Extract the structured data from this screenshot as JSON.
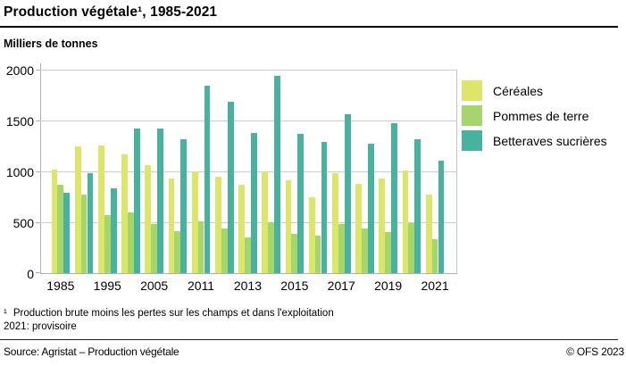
{
  "chart_data": {
    "type": "bar",
    "title": "Production végétale¹, 1985-2021",
    "unit_label": "Milliers de tonnes",
    "categories": [
      "1985",
      "1990",
      "1995",
      "2000",
      "2005",
      "2010",
      "2011",
      "2012",
      "2013",
      "2014",
      "2015",
      "2016",
      "2017",
      "2018",
      "2019",
      "2020",
      "2021"
    ],
    "x_labeled_every": 2,
    "series": [
      {
        "name": "Céréales",
        "color": "#dde767",
        "values": [
          1020,
          1250,
          1255,
          1170,
          1060,
          930,
          1000,
          950,
          865,
          1000,
          915,
          745,
          980,
          880,
          930,
          1010,
          775
        ]
      },
      {
        "name": "Pommes de terre",
        "color": "#a4d66b",
        "values": [
          870,
          770,
          570,
          600,
          485,
          410,
          510,
          440,
          350,
          500,
          390,
          370,
          480,
          440,
          405,
          490,
          335
        ]
      },
      {
        "name": "Betteraves sucrières",
        "color": "#47b29e",
        "values": [
          790,
          980,
          830,
          1420,
          1420,
          1320,
          1845,
          1685,
          1380,
          1935,
          1370,
          1290,
          1560,
          1270,
          1470,
          1320,
          1105
        ]
      }
    ],
    "ylim": [
      0,
      2000
    ],
    "yticks": [
      0,
      500,
      1000,
      1500,
      2000
    ],
    "grid": true,
    "legend_position": "right"
  },
  "footnotes": {
    "marker": "¹",
    "line1": "Production brute moins les pertes sur les champs et dans l'exploitation",
    "line2": "2021: provisoire"
  },
  "footer": {
    "source": "Source: Agristat – Production végétale",
    "copyright": "© OFS 2023"
  },
  "colors": {
    "gridline": "#cccccc",
    "axis": "#b0b0b0"
  }
}
